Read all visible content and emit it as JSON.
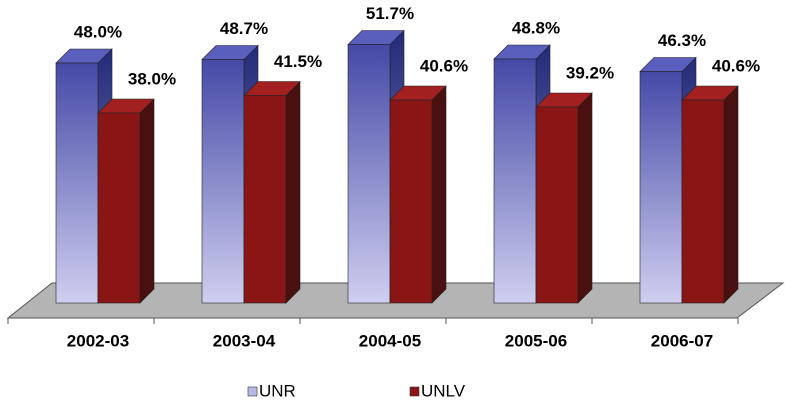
{
  "chart_data": {
    "type": "bar3d",
    "categories": [
      "2002-03",
      "2003-04",
      "2004-05",
      "2005-06",
      "2006-07"
    ],
    "series": [
      {
        "name": "UNR",
        "color": "#4549a6",
        "values": [
          48.0,
          48.7,
          51.7,
          48.8,
          46.3
        ],
        "value_labels": [
          "48.0%",
          "48.7%",
          "51.7%",
          "48.8%",
          "46.3%"
        ]
      },
      {
        "name": "UNLV",
        "color": "#8a1515",
        "values": [
          38.0,
          41.5,
          40.6,
          39.2,
          40.6
        ],
        "value_labels": [
          "38.0%",
          "41.5%",
          "40.6%",
          "39.2%",
          "40.6%"
        ]
      }
    ]
  }
}
